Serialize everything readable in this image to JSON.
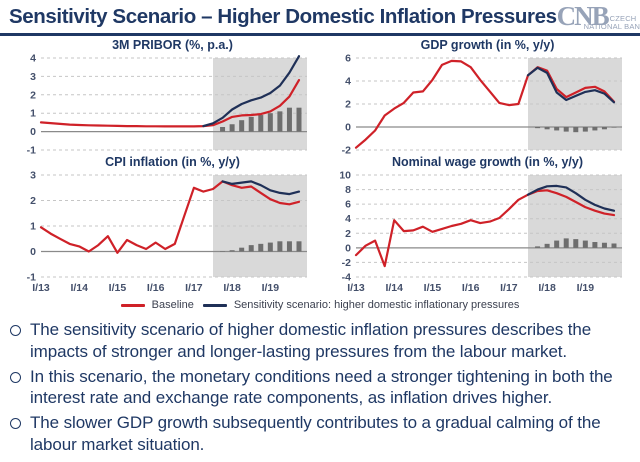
{
  "header": {
    "title": "Sensitivity Scenario – Higher Domestic Inflation Pressures",
    "logo": {
      "cnb": "CNB",
      "czech": "CZECH",
      "national_bank": "NATIONAL BANK"
    }
  },
  "colors": {
    "accent_navy": "#1f3864",
    "baseline_red": "#cf2128",
    "scenario_navy": "#1f3057",
    "forecast_shading": "#d9d9d9",
    "bar_gray": "#6e6e6e",
    "grid": "#c6c6c6",
    "zero_line": "#8a8a8a",
    "tick_text": "#44506b",
    "logo_gray": "#97a3b8"
  },
  "legend": [
    {
      "label": "Baseline",
      "color": "#cf2128"
    },
    {
      "label": "Sensitivity scenario: higher domestic inflationary pressures",
      "color": "#1f3057"
    }
  ],
  "bullets": [
    "The sensitivity scenario of higher domestic inflation pressures describes the impacts of stronger and longer-lasting pressures from the labour market.",
    "In this scenario, the monetary conditions need a stronger tightening in both the interest rate and exchange rate components, as inflation drives higher.",
    "The slower GDP growth subsequently contributes to a gradual calming of the labour market situation."
  ],
  "chart_data": [
    {
      "type": "line",
      "title": "3M PRIBOR (%, p.a.)",
      "x_note": "quarterly 2013Q1-2019Q4",
      "xticklabels": [
        "I/13",
        "I/14",
        "I/15",
        "I/16",
        "I/17",
        "I/18",
        "I/19"
      ],
      "show_xticklabels": false,
      "ylim": [
        -1,
        4
      ],
      "yticks": [
        -1,
        0,
        1,
        2,
        3,
        4
      ],
      "forecast_shading_start_index": 18,
      "series": [
        {
          "name": "Baseline",
          "color": "#cf2128",
          "values": [
            0.5,
            0.46,
            0.42,
            0.38,
            0.36,
            0.34,
            0.33,
            0.32,
            0.31,
            0.3,
            0.3,
            0.29,
            0.29,
            0.28,
            0.28,
            0.28,
            0.28,
            0.3,
            0.35,
            0.55,
            0.8,
            0.88,
            0.9,
            0.95,
            1.1,
            1.4,
            1.9,
            2.8
          ]
        },
        {
          "name": "Sensitivity scenario",
          "color": "#1f3057",
          "start_index": 17,
          "values": [
            0.3,
            0.45,
            0.75,
            1.2,
            1.5,
            1.7,
            1.85,
            2.1,
            2.5,
            3.2,
            4.1
          ]
        }
      ],
      "bars": {
        "name": "difference (scenario - baseline)",
        "color": "#6e6e6e",
        "start_index": 19,
        "values": [
          0.25,
          0.4,
          0.62,
          0.8,
          0.9,
          1.0,
          1.1,
          1.3,
          1.3
        ]
      }
    },
    {
      "type": "line",
      "title": "GDP growth (in %, y/y)",
      "x_note": "quarterly 2013Q1-2019Q4",
      "xticklabels": [
        "I/13",
        "I/14",
        "I/15",
        "I/16",
        "I/17",
        "I/18",
        "I/19"
      ],
      "show_xticklabels": false,
      "ylim": [
        -2,
        6
      ],
      "yticks": [
        -2,
        0,
        2,
        4,
        6
      ],
      "forecast_shading_start_index": 18,
      "series": [
        {
          "name": "Baseline",
          "color": "#cf2128",
          "values": [
            -1.8,
            -1.1,
            -0.3,
            1.0,
            1.6,
            2.1,
            3.0,
            3.1,
            4.1,
            5.4,
            5.75,
            5.7,
            5.2,
            4.1,
            3.1,
            2.1,
            1.9,
            2.0,
            4.5,
            5.2,
            4.9,
            3.3,
            2.6,
            3.0,
            3.4,
            3.5,
            3.1,
            2.2
          ]
        },
        {
          "name": "Sensitivity scenario",
          "color": "#1f3057",
          "start_index": 18,
          "values": [
            4.5,
            5.15,
            4.7,
            3.0,
            2.35,
            2.7,
            3.05,
            3.2,
            2.9,
            2.15
          ]
        }
      ],
      "bars": {
        "name": "difference (scenario - baseline)",
        "color": "#6e6e6e",
        "start_index": 19,
        "values": [
          -0.1,
          -0.2,
          -0.3,
          -0.4,
          -0.45,
          -0.4,
          -0.3,
          -0.2,
          -0.05
        ]
      }
    },
    {
      "type": "line",
      "title": "CPI inflation (in %, y/y)",
      "x_note": "quarterly 2013Q1-2019Q4",
      "xticklabels": [
        "I/13",
        "I/14",
        "I/15",
        "I/16",
        "I/17",
        "I/18",
        "I/19"
      ],
      "show_xticklabels": true,
      "ylim": [
        -1,
        3
      ],
      "yticks": [
        -1,
        0,
        1,
        2,
        3
      ],
      "forecast_shading_start_index": 18,
      "series": [
        {
          "name": "Baseline",
          "color": "#cf2128",
          "values": [
            0.95,
            0.7,
            0.5,
            0.3,
            0.2,
            0.0,
            0.25,
            0.6,
            -0.05,
            0.45,
            0.25,
            0.1,
            0.35,
            0.1,
            0.3,
            1.4,
            2.5,
            2.35,
            2.45,
            2.75,
            2.6,
            2.5,
            2.55,
            2.3,
            2.05,
            1.9,
            1.85,
            1.95
          ]
        },
        {
          "name": "Sensitivity scenario",
          "color": "#1f3057",
          "start_index": 19,
          "values": [
            2.75,
            2.65,
            2.7,
            2.75,
            2.6,
            2.4,
            2.3,
            2.25,
            2.35
          ]
        }
      ],
      "bars": {
        "name": "difference (scenario - baseline)",
        "color": "#6e6e6e",
        "start_index": 19,
        "values": [
          0.0,
          0.05,
          0.15,
          0.25,
          0.3,
          0.35,
          0.4,
          0.4,
          0.4
        ]
      }
    },
    {
      "type": "line",
      "title": "Nominal wage growth (in %, y/y)",
      "x_note": "quarterly 2013Q1-2019Q4",
      "xticklabels": [
        "I/13",
        "I/14",
        "I/15",
        "I/16",
        "I/17",
        "I/18",
        "I/19"
      ],
      "show_xticklabels": true,
      "ylim": [
        -4,
        10
      ],
      "yticks": [
        -4,
        -2,
        0,
        2,
        4,
        6,
        8,
        10
      ],
      "forecast_shading_start_index": 18,
      "series": [
        {
          "name": "Baseline",
          "color": "#cf2128",
          "values": [
            -1.0,
            0.3,
            1.0,
            -2.5,
            3.8,
            2.3,
            2.4,
            2.9,
            2.2,
            2.6,
            3.0,
            3.3,
            3.8,
            3.4,
            3.6,
            4.1,
            5.3,
            6.6,
            7.3,
            7.8,
            7.9,
            7.5,
            7.0,
            6.3,
            5.6,
            5.1,
            4.7,
            4.5
          ]
        },
        {
          "name": "Sensitivity scenario",
          "color": "#1f3057",
          "start_index": 18,
          "values": [
            7.3,
            8.0,
            8.45,
            8.5,
            8.3,
            7.5,
            6.6,
            5.9,
            5.4,
            5.1
          ]
        }
      ],
      "bars": {
        "name": "difference (scenario - baseline)",
        "color": "#6e6e6e",
        "start_index": 19,
        "values": [
          0.2,
          0.55,
          1.0,
          1.3,
          1.2,
          1.0,
          0.8,
          0.7,
          0.6
        ]
      }
    }
  ]
}
